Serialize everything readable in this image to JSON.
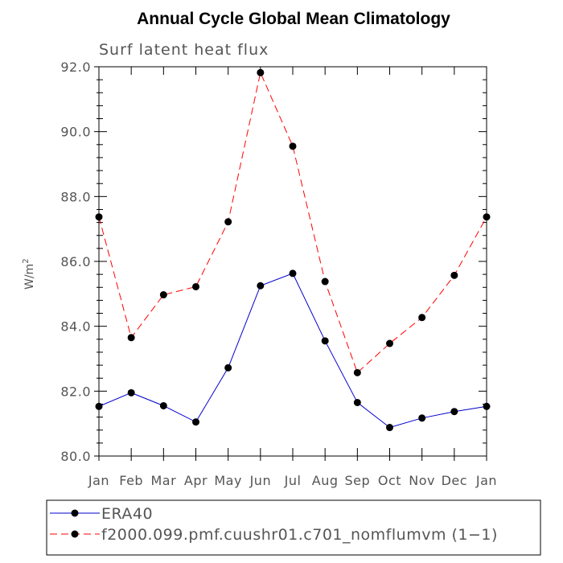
{
  "chart_data": {
    "type": "line",
    "title": "Annual Cycle Global Mean Climatology",
    "subtitle": "Surf latent heat flux",
    "ylabel": "W/m",
    "ylabel_sup": "2",
    "xlabel": "",
    "categories": [
      "Jan",
      "Feb",
      "Mar",
      "Apr",
      "May",
      "Jun",
      "Jul",
      "Aug",
      "Sep",
      "Oct",
      "Nov",
      "Dec",
      "Jan"
    ],
    "ylim": [
      80.0,
      92.0
    ],
    "yticks": [
      "80.0",
      "82.0",
      "84.0",
      "86.0",
      "88.0",
      "90.0",
      "92.0"
    ],
    "series": [
      {
        "name": "ERA40",
        "color": "#0000cc",
        "dash": "solid",
        "values": [
          81.53,
          81.95,
          81.55,
          81.05,
          82.72,
          85.25,
          85.63,
          83.55,
          81.65,
          80.88,
          81.17,
          81.37,
          81.53
        ]
      },
      {
        "name": "f2000.099.pmf.cuushr01.c701_nomflumvm (1−1)",
        "color": "#ff0000",
        "dash": "dashed",
        "values": [
          87.37,
          83.65,
          84.97,
          85.22,
          87.22,
          91.82,
          89.55,
          85.38,
          82.57,
          83.47,
          84.27,
          85.57,
          87.37
        ]
      }
    ],
    "legend_position": "bottom"
  }
}
